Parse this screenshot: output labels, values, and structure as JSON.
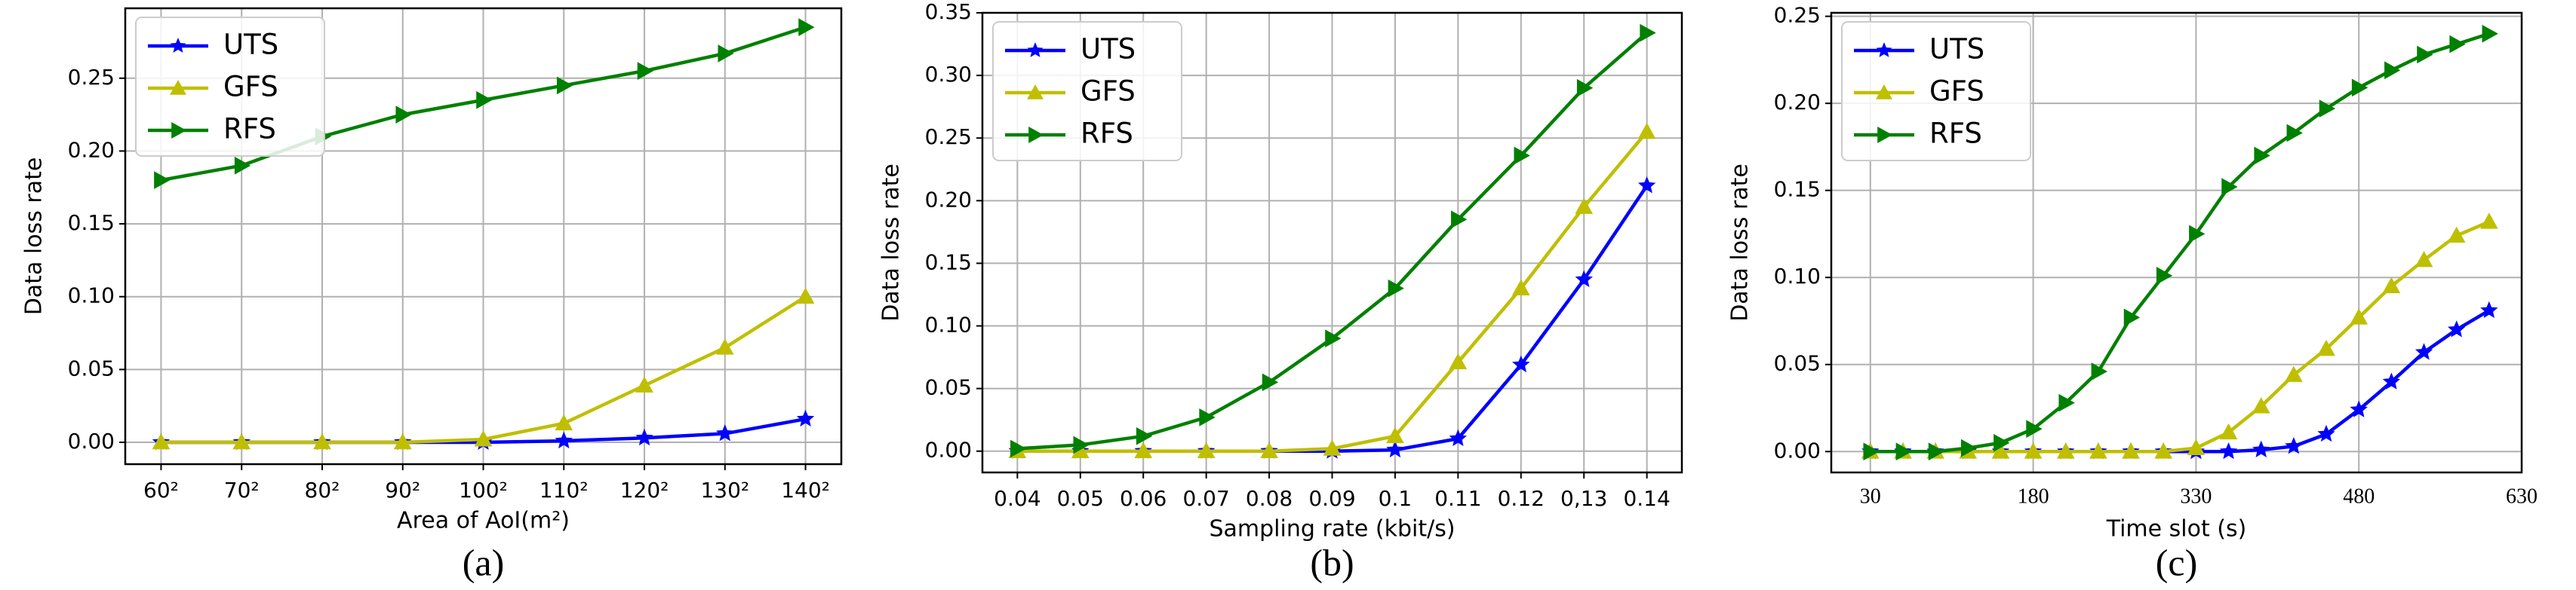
{
  "chart_data": [
    {
      "type": "line",
      "caption": "(a)",
      "x_label": "Area of AoI(m²)",
      "y_label": "Data loss rate",
      "categories": [
        "60²",
        "70²",
        "80²",
        "90²",
        "100²",
        "110²",
        "120²",
        "130²",
        "140²"
      ],
      "series": [
        {
          "name": "UTS",
          "color": "#0000ff",
          "marker": "star",
          "values": [
            0,
            0,
            0,
            0,
            0,
            0.001,
            0.003,
            0.006,
            0.016
          ]
        },
        {
          "name": "GFS",
          "color": "#bfbf00",
          "marker": "triangle-up",
          "values": [
            0,
            0,
            0,
            0,
            0.002,
            0.013,
            0.039,
            0.065,
            0.1
          ]
        },
        {
          "name": "RFS",
          "color": "#008000",
          "marker": "triangle-right",
          "values": [
            0.18,
            0.19,
            0.21,
            0.225,
            0.235,
            0.245,
            0.255,
            0.267,
            0.285
          ]
        }
      ],
      "ylim": [
        -0.015,
        0.298
      ],
      "yticks": [
        {
          "value": 0,
          "label": "0.00"
        },
        0.05,
        {
          "value": 0.1,
          "label": "0.10"
        },
        0.15,
        {
          "value": 0.2,
          "label": "0.20"
        },
        0.25
      ],
      "grid": true,
      "legend": "upper-left"
    },
    {
      "type": "line",
      "caption": "(b)",
      "x_label": "Sampling rate (kbit/s)",
      "y_label": "Data loss rate",
      "categories": [
        "0.04",
        "0.05",
        "0.06",
        "0.07",
        "0.08",
        "0.09",
        "0.1",
        "0.11",
        "0.12",
        "0,13",
        "0.14"
      ],
      "series": [
        {
          "name": "UTS",
          "color": "#0000ff",
          "marker": "star",
          "values": [
            0,
            0,
            0,
            0,
            0,
            0,
            0.001,
            0.01,
            0.069,
            0.137,
            0.212
          ]
        },
        {
          "name": "GFS",
          "color": "#bfbf00",
          "marker": "triangle-up",
          "values": [
            0,
            0,
            0,
            0,
            0,
            0.002,
            0.012,
            0.071,
            0.13,
            0.195,
            0.255
          ]
        },
        {
          "name": "RFS",
          "color": "#008000",
          "marker": "triangle-right",
          "values": [
            0.002,
            0.005,
            0.012,
            0.027,
            0.055,
            0.09,
            0.13,
            0.185,
            0.236,
            0.29,
            0.334
          ]
        }
      ],
      "ylim": [
        -0.017,
        0.35
      ],
      "yticks": [
        {
          "value": 0,
          "label": "0.00"
        },
        0.05,
        {
          "value": 0.1,
          "label": "0.10"
        },
        0.15,
        {
          "value": 0.2,
          "label": "0.20"
        },
        0.25,
        {
          "value": 0.3,
          "label": "0.30"
        },
        0.35
      ],
      "grid": true,
      "legend": "upper-left"
    },
    {
      "type": "line",
      "caption": "(c)",
      "x_label": "Time slot (s)",
      "y_label": "Data loss rate",
      "x": [
        30,
        60,
        90,
        120,
        150,
        180,
        210,
        240,
        270,
        300,
        330,
        360,
        390,
        420,
        450,
        480,
        510,
        540,
        570,
        600
      ],
      "series": [
        {
          "name": "UTS",
          "color": "#0000ff",
          "marker": "star",
          "values": [
            0,
            0,
            0,
            0,
            0,
            0,
            0,
            0,
            0,
            0,
            0,
            0,
            0.001,
            0.003,
            0.01,
            0.024,
            0.04,
            0.057,
            0.07,
            0.081
          ]
        },
        {
          "name": "GFS",
          "color": "#bfbf00",
          "marker": "triangle-up",
          "values": [
            0,
            0,
            0,
            0,
            0,
            0,
            0,
            0,
            0,
            0,
            0.002,
            0.011,
            0.026,
            0.044,
            0.059,
            0.077,
            0.095,
            0.11,
            0.124,
            0.132
          ]
        },
        {
          "name": "RFS",
          "color": "#008000",
          "marker": "triangle-right",
          "values": [
            0,
            0,
            0,
            0.002,
            0.005,
            0.013,
            0.028,
            0.046,
            0.077,
            0.101,
            0.125,
            0.152,
            0.17,
            0.183,
            0.197,
            0.209,
            0.219,
            0.228,
            0.234,
            0.24
          ]
        }
      ],
      "xlim": [
        -6,
        630
      ],
      "xticks": [
        30,
        180,
        330,
        480,
        630
      ],
      "ylim": [
        -0.012,
        0.252
      ],
      "yticks": [
        {
          "value": 0,
          "label": "0.00"
        },
        0.05,
        {
          "value": 0.1,
          "label": "0.10"
        },
        0.15,
        {
          "value": 0.2,
          "label": "0.20"
        },
        0.25
      ],
      "grid": true,
      "legend": "upper-left"
    }
  ]
}
